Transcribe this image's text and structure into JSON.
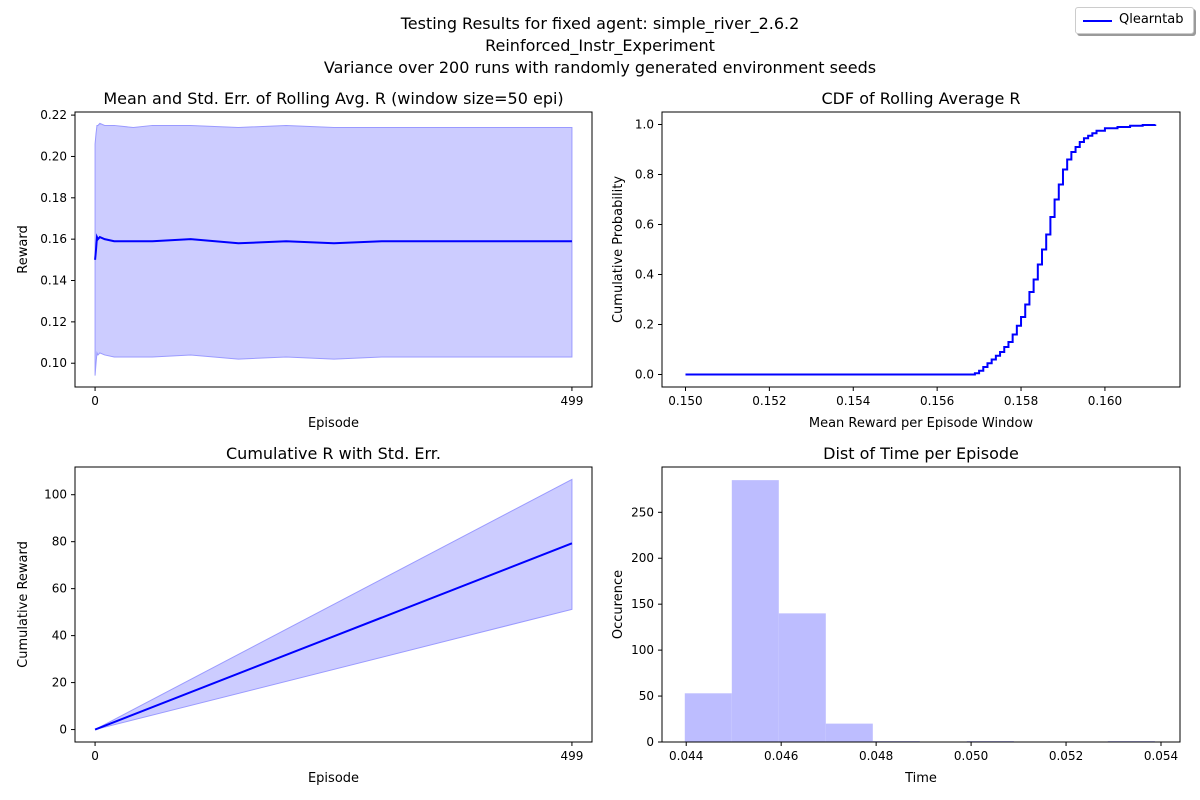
{
  "suptitle": {
    "line1": "Testing Results for fixed agent: simple_river_2.6.2",
    "line2": "Reinforced_Instr_Experiment",
    "line3": "Variance over 200 runs with randomly generated environment seeds"
  },
  "legend": {
    "label": "Qlearntab",
    "color": "#0000ff"
  },
  "colors": {
    "line": "#0000ff",
    "band": "#ccccff",
    "band_edge": "#9a9aff",
    "hist": "#bdbdff"
  },
  "chart_data": [
    {
      "type": "line",
      "title": "Mean and Std. Err. of Rolling Avg. R (window size=50 epi)",
      "xlabel": "Episode",
      "ylabel": "Reward",
      "xticks": [
        0,
        499
      ],
      "yticks": [
        0.1,
        0.12,
        0.14,
        0.16,
        0.18,
        0.2,
        0.22
      ],
      "ytick_labels": [
        "0.10",
        "0.12",
        "0.14",
        "0.16",
        "0.18",
        "0.20",
        "0.22"
      ],
      "xlim": [
        -21,
        520
      ],
      "ylim": [
        0.0885,
        0.2215
      ],
      "x": [
        0,
        1,
        2,
        3,
        5,
        10,
        20,
        40,
        60,
        100,
        150,
        200,
        250,
        300,
        350,
        400,
        450,
        499
      ],
      "mean": [
        0.15,
        0.155,
        0.161,
        0.16,
        0.161,
        0.16,
        0.159,
        0.159,
        0.159,
        0.16,
        0.158,
        0.159,
        0.158,
        0.159,
        0.159,
        0.159,
        0.159,
        0.159
      ],
      "upper": [
        0.206,
        0.211,
        0.215,
        0.215,
        0.216,
        0.215,
        0.215,
        0.214,
        0.215,
        0.215,
        0.214,
        0.215,
        0.214,
        0.214,
        0.214,
        0.214,
        0.214,
        0.214
      ],
      "lower": [
        0.094,
        0.1,
        0.105,
        0.104,
        0.105,
        0.104,
        0.103,
        0.103,
        0.103,
        0.104,
        0.102,
        0.103,
        0.102,
        0.103,
        0.103,
        0.103,
        0.103,
        0.103
      ]
    },
    {
      "type": "line",
      "title": "CDF of Rolling Average R",
      "xlabel": "Mean Reward per Episode Window",
      "ylabel": "Cumulative Probability",
      "xticks": [
        0.15,
        0.152,
        0.154,
        0.156,
        0.158,
        0.16
      ],
      "xtick_labels": [
        "0.150",
        "0.152",
        "0.154",
        "0.156",
        "0.158",
        "0.160"
      ],
      "yticks": [
        0.0,
        0.2,
        0.4,
        0.6,
        0.8,
        1.0
      ],
      "ytick_labels": [
        "0.0",
        "0.2",
        "0.4",
        "0.6",
        "0.8",
        "1.0"
      ],
      "xlim": [
        0.14944,
        0.16179
      ],
      "ylim": [
        -0.05,
        1.05
      ],
      "x": [
        0.15,
        0.1569,
        0.157,
        0.1571,
        0.1572,
        0.1573,
        0.1574,
        0.1575,
        0.1576,
        0.1577,
        0.1578,
        0.1579,
        0.158,
        0.1581,
        0.1582,
        0.1583,
        0.1584,
        0.1585,
        0.1586,
        0.1587,
        0.1588,
        0.1589,
        0.159,
        0.1591,
        0.1592,
        0.1593,
        0.1594,
        0.1595,
        0.1596,
        0.1597,
        0.1598,
        0.16,
        0.1603,
        0.1606,
        0.1609,
        0.1612
      ],
      "y": [
        0.0,
        0.005,
        0.015,
        0.03,
        0.045,
        0.06,
        0.075,
        0.09,
        0.11,
        0.13,
        0.16,
        0.195,
        0.23,
        0.28,
        0.33,
        0.38,
        0.44,
        0.5,
        0.56,
        0.63,
        0.7,
        0.76,
        0.82,
        0.86,
        0.89,
        0.91,
        0.93,
        0.945,
        0.955,
        0.965,
        0.975,
        0.985,
        0.99,
        0.995,
        0.998,
        1.0
      ]
    },
    {
      "type": "line",
      "title": "Cumulative R with Std. Err.",
      "xlabel": "Episode",
      "ylabel": "Cumulative Reward",
      "xticks": [
        0,
        499
      ],
      "yticks": [
        0,
        20,
        40,
        60,
        80,
        100
      ],
      "ytick_labels": [
        "0",
        "20",
        "40",
        "60",
        "80",
        "100"
      ],
      "xlim": [
        -21,
        520
      ],
      "ylim": [
        -5.3,
        111.8
      ],
      "x": [
        0,
        499
      ],
      "mean": [
        0,
        79.3
      ],
      "upper": [
        0,
        106.5
      ],
      "lower": [
        0,
        51.2
      ]
    },
    {
      "type": "bar",
      "title": "Dist of Time per Episode",
      "xlabel": "Time",
      "ylabel": "Occurence",
      "xticks": [
        0.044,
        0.046,
        0.048,
        0.05,
        0.052,
        0.054
      ],
      "xtick_labels": [
        "0.044",
        "0.046",
        "0.048",
        "0.050",
        "0.052",
        "0.054"
      ],
      "yticks": [
        0,
        50,
        100,
        150,
        200,
        250
      ],
      "ytick_labels": [
        "0",
        "50",
        "100",
        "150",
        "200",
        "250"
      ],
      "xlim": [
        0.04349,
        0.0544
      ],
      "ylim": [
        0,
        299.3
      ],
      "bins": [
        0.04397,
        0.04496,
        0.04595,
        0.04694,
        0.04793,
        0.04892,
        0.04991,
        0.0509,
        0.05189,
        0.05288,
        0.05387
      ],
      "counts": [
        53,
        285,
        140,
        20,
        1,
        0,
        1,
        0,
        0,
        1
      ]
    }
  ]
}
